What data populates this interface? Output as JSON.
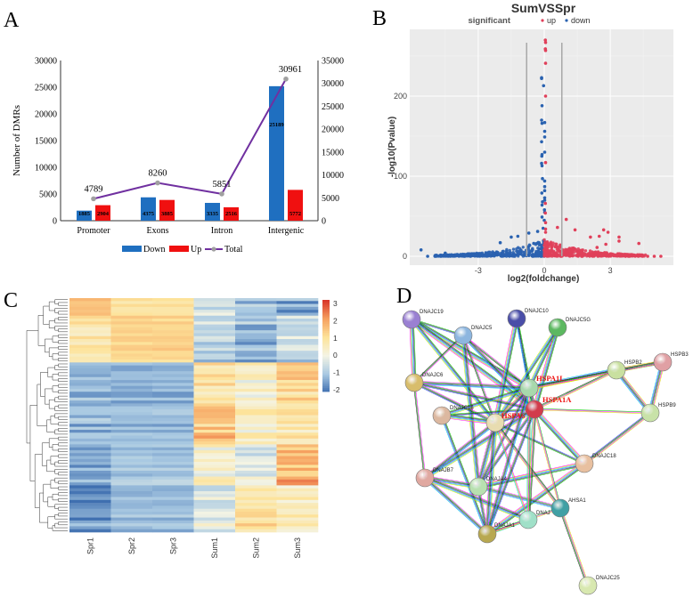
{
  "panels": {
    "a": "A",
    "b": "B",
    "c": "C",
    "d": "D"
  },
  "chart_data": [
    {
      "type": "bar",
      "panel": "A",
      "categories": [
        "Promoter",
        "Exons",
        "Intron",
        "Intergenic"
      ],
      "series": [
        {
          "name": "Down",
          "axis": "left",
          "color": "#1f6fc0",
          "values": [
            1885,
            4375,
            3335,
            25189
          ]
        },
        {
          "name": "Up",
          "axis": "left",
          "color": "#f01010",
          "values": [
            2904,
            3885,
            2516,
            5772
          ]
        },
        {
          "name": "Total",
          "type": "line",
          "axis": "right",
          "color": "#7030a0",
          "marker_color": "#a0a0a0",
          "values": [
            4789,
            8260,
            5851,
            30961
          ]
        }
      ],
      "ylabel": "Number of DMRs",
      "ylim": [
        0,
        30000
      ],
      "yticks": [
        "0",
        "5000",
        "10000",
        "15000",
        "20000",
        "25000",
        "30000"
      ],
      "y2lim": [
        0,
        35000
      ],
      "y2ticks": [
        "0",
        "5000",
        "10000",
        "15000",
        "20000",
        "25000",
        "30000",
        "35000"
      ],
      "legend": [
        "Down",
        "Up",
        "Total"
      ],
      "legend_position": "bottom"
    },
    {
      "type": "scatter",
      "panel": "B",
      "title": "SumVSSpr",
      "legend_title": "significant",
      "legend": [
        {
          "name": "up",
          "color": "#e0405a"
        },
        {
          "name": "down",
          "color": "#2a62b0"
        }
      ],
      "legend_position": "top",
      "xlabel": "log2(foldchange)",
      "ylabel": "-log10(Pvalue)",
      "xlim": [
        -6.1,
        5.9
      ],
      "ylim": [
        -4,
        283
      ],
      "xticks": [
        {
          "v": -3,
          "label": "-3"
        },
        {
          "v": 0,
          "label": "0"
        },
        {
          "v": 3,
          "label": "3"
        }
      ],
      "yticks": [
        {
          "v": 0,
          "label": "0"
        },
        {
          "v": 100,
          "label": "100"
        },
        {
          "v": 200,
          "label": "200"
        }
      ],
      "thresholds": [
        -0.8,
        0.8
      ],
      "highlight_points": [
        {
          "x": -0.12,
          "y": 222,
          "g": "down"
        },
        {
          "x": -0.12,
          "y": 223,
          "g": "down"
        },
        {
          "x": -0.03,
          "y": 213,
          "g": "down"
        },
        {
          "x": -0.1,
          "y": 188,
          "g": "down"
        },
        {
          "x": -0.12,
          "y": 170,
          "g": "down"
        },
        {
          "x": -0.1,
          "y": 166,
          "g": "down"
        },
        {
          "x": -0.12,
          "y": 143,
          "g": "down"
        },
        {
          "x": -0.1,
          "y": 127,
          "g": "down"
        },
        {
          "x": -0.11,
          "y": 125,
          "g": "down"
        },
        {
          "x": -0.12,
          "y": 116,
          "g": "down"
        },
        {
          "x": -0.1,
          "y": 113,
          "g": "down"
        },
        {
          "x": -0.08,
          "y": 97,
          "g": "down"
        },
        {
          "x": -0.11,
          "y": 79,
          "g": "down"
        },
        {
          "x": -0.08,
          "y": 68,
          "g": "down"
        },
        {
          "x": -0.1,
          "y": 64,
          "g": "down"
        },
        {
          "x": -0.1,
          "y": 49,
          "g": "down"
        },
        {
          "x": 0.02,
          "y": 167,
          "g": "down"
        },
        {
          "x": 0.02,
          "y": 156,
          "g": "down"
        },
        {
          "x": 0.02,
          "y": 149,
          "g": "down"
        },
        {
          "x": 0.02,
          "y": 130,
          "g": "down"
        },
        {
          "x": 0.02,
          "y": 94,
          "g": "down"
        },
        {
          "x": 0.02,
          "y": 87,
          "g": "down"
        },
        {
          "x": 0.02,
          "y": 82,
          "g": "down"
        },
        {
          "x": 0.02,
          "y": 73,
          "g": "down"
        },
        {
          "x": 0.02,
          "y": 70,
          "g": "down"
        },
        {
          "x": 0.01,
          "y": 58,
          "g": "down"
        },
        {
          "x": 0.02,
          "y": 55,
          "g": "down"
        },
        {
          "x": 0.0,
          "y": 45,
          "g": "down"
        },
        {
          "x": -0.05,
          "y": 35,
          "g": "down"
        },
        {
          "x": 0.05,
          "y": 270,
          "g": "up"
        },
        {
          "x": 0.06,
          "y": 267,
          "g": "up"
        },
        {
          "x": 0.05,
          "y": 259,
          "g": "up"
        },
        {
          "x": 0.06,
          "y": 257,
          "g": "up"
        },
        {
          "x": 0.06,
          "y": 241,
          "g": "up"
        },
        {
          "x": 0.06,
          "y": 200,
          "g": "up"
        },
        {
          "x": 0.06,
          "y": 117,
          "g": "up"
        },
        {
          "x": 0.05,
          "y": 66,
          "g": "up"
        },
        {
          "x": 0.05,
          "y": 54,
          "g": "up"
        },
        {
          "x": 0.06,
          "y": 42,
          "g": "up"
        },
        {
          "x": 0.06,
          "y": 34,
          "g": "up"
        },
        {
          "x": 0.06,
          "y": 30,
          "g": "up"
        },
        {
          "x": 1.0,
          "y": 46,
          "g": "up"
        },
        {
          "x": 0.6,
          "y": 36,
          "g": "up"
        },
        {
          "x": 1.4,
          "y": 33,
          "g": "up"
        },
        {
          "x": 2.7,
          "y": 33,
          "g": "up"
        },
        {
          "x": 2.9,
          "y": 30,
          "g": "up"
        },
        {
          "x": 2.5,
          "y": 25,
          "g": "up"
        },
        {
          "x": 3.4,
          "y": 24,
          "g": "up"
        },
        {
          "x": 2.1,
          "y": 24,
          "g": "up"
        },
        {
          "x": 3.4,
          "y": 19,
          "g": "up"
        },
        {
          "x": 2.8,
          "y": 15,
          "g": "up"
        },
        {
          "x": 4.3,
          "y": 16,
          "g": "up"
        },
        {
          "x": 2.4,
          "y": 11,
          "g": "up"
        },
        {
          "x": 5.0,
          "y": 0,
          "g": "up"
        },
        {
          "x": 5.3,
          "y": 0,
          "g": "up"
        },
        {
          "x": 4.7,
          "y": 0,
          "g": "up"
        },
        {
          "x": -5.6,
          "y": 8,
          "g": "down"
        },
        {
          "x": -5.3,
          "y": 0,
          "g": "down"
        },
        {
          "x": -4.9,
          "y": 0,
          "g": "down"
        },
        {
          "x": -4.5,
          "y": 4,
          "g": "down"
        },
        {
          "x": -1.5,
          "y": 24,
          "g": "down"
        },
        {
          "x": -1.2,
          "y": 25,
          "g": "down"
        },
        {
          "x": -0.7,
          "y": 29,
          "g": "down"
        },
        {
          "x": -0.3,
          "y": 31,
          "g": "down"
        },
        {
          "x": -2.0,
          "y": 17,
          "g": "down"
        }
      ],
      "bulk_points_per_side": 420
    },
    {
      "type": "heatmap",
      "panel": "C",
      "columns": [
        "Spr1",
        "Spr2",
        "Spr3",
        "Sum1",
        "Sum2",
        "Sum3"
      ],
      "colorbar": {
        "range": [
          -2,
          3
        ],
        "ticks": [
          "3",
          "2",
          "1",
          "0",
          "-1",
          "-2"
        ],
        "stops": [
          "#3f6fb0",
          "#a9c9e2",
          "#f4f4e4",
          "#fde39a",
          "#f6a160",
          "#d9382a"
        ]
      },
      "row_blocks": [
        {
          "rows": 6,
          "values": [
            1.6,
            0.9,
            0.9,
            -0.4,
            -1.0,
            -1.3
          ]
        },
        {
          "rows": 16,
          "values": [
            0.7,
            1.2,
            1.2,
            -0.8,
            -1.2,
            -0.6
          ]
        },
        {
          "rows": 14,
          "values": [
            -1.3,
            -1.3,
            -1.3,
            0.7,
            0.2,
            1.2
          ]
        },
        {
          "rows": 14,
          "values": [
            -1.1,
            -1.2,
            -1.2,
            1.4,
            0.3,
            0.6
          ]
        },
        {
          "rows": 14,
          "values": [
            -1.5,
            -1.0,
            -1.0,
            0.3,
            -0.2,
            1.7
          ]
        },
        {
          "rows": 16,
          "values": [
            -1.6,
            -1.1,
            -1.1,
            -0.3,
            1.0,
            0.6
          ]
        }
      ]
    }
  ],
  "network": {
    "panel": "D",
    "nodes": [
      {
        "id": "DNAJC19",
        "color": "#9a80d2",
        "hub": false
      },
      {
        "id": "DNAJC5",
        "color": "#8db6df",
        "hub": false
      },
      {
        "id": "DNAJC10",
        "color": "#4a4ea8",
        "hub": false
      },
      {
        "id": "DNAJC5G",
        "color": "#5cb860",
        "hub": false
      },
      {
        "id": "HSPB2",
        "color": "#c9e0a0",
        "hub": false
      },
      {
        "id": "HSPB3",
        "color": "#e0a0a4",
        "hub": false
      },
      {
        "id": "DNAJC6",
        "color": "#d8bd6c",
        "hub": false
      },
      {
        "id": "HSPA1L",
        "color": "#a8d8ac",
        "hub": true
      },
      {
        "id": "HSPA1A",
        "color": "#d23c4c",
        "hub": true
      },
      {
        "id": "HSPB9",
        "color": "#c8e2a8",
        "hub": false
      },
      {
        "id": "DNAJC16",
        "color": "#dcb8a0",
        "hub": false
      },
      {
        "id": "HSPA6",
        "color": "#e8dcb0",
        "hub": true
      },
      {
        "id": "DNAJC18",
        "color": "#e8c0a0",
        "hub": false
      },
      {
        "id": "DNAJB7",
        "color": "#e0a8a0",
        "hub": false
      },
      {
        "id": "DNAJA4",
        "color": "#b8e0b0",
        "hub": false
      },
      {
        "id": "AHSA1",
        "color": "#40a0a4",
        "hub": false
      },
      {
        "id": "DNAJ",
        "color": "#a0e0c8",
        "hub": false
      },
      {
        "id": "DNAJA1",
        "color": "#b8a850",
        "hub": false
      },
      {
        "id": "DNAJC25",
        "color": "#d8e8b0",
        "hub": false
      }
    ],
    "edges": [
      [
        "DNAJC19",
        "DNAJC5"
      ],
      [
        "DNAJC19",
        "DNAJC6"
      ],
      [
        "DNAJC19",
        "HSPA1L"
      ],
      [
        "DNAJC19",
        "HSPA1A"
      ],
      [
        "DNAJC19",
        "HSPA6"
      ],
      [
        "DNAJC5",
        "HSPA1L"
      ],
      [
        "DNAJC5",
        "HSPA1A"
      ],
      [
        "DNAJC5",
        "HSPA6"
      ],
      [
        "DNAJC5",
        "DNAJC6"
      ],
      [
        "DNAJC5",
        "DNAJA4"
      ],
      [
        "DNAJC10",
        "HSPA1L"
      ],
      [
        "DNAJC10",
        "HSPA1A"
      ],
      [
        "DNAJC10",
        "HSPA6"
      ],
      [
        "DNAJC5G",
        "HSPA1L"
      ],
      [
        "DNAJC5G",
        "HSPA1A"
      ],
      [
        "DNAJC5G",
        "HSPA6"
      ],
      [
        "HSPB2",
        "HSPB3"
      ],
      [
        "HSPB2",
        "HSPB9"
      ],
      [
        "HSPB3",
        "HSPB9"
      ],
      [
        "HSPB2",
        "HSPA1L"
      ],
      [
        "HSPB2",
        "HSPA1A"
      ],
      [
        "HSPB3",
        "HSPA1L"
      ],
      [
        "HSPB9",
        "HSPA1A"
      ],
      [
        "HSPB9",
        "DNAJC18"
      ],
      [
        "DNAJC6",
        "HSPA1L"
      ],
      [
        "DNAJC6",
        "HSPA1A"
      ],
      [
        "DNAJC6",
        "HSPA6"
      ],
      [
        "DNAJC6",
        "DNAJB7"
      ],
      [
        "DNAJC16",
        "HSPA1L"
      ],
      [
        "DNAJC16",
        "HSPA1A"
      ],
      [
        "DNAJC16",
        "HSPA6"
      ],
      [
        "DNAJC16",
        "DNAJA1"
      ],
      [
        "HSPA6",
        "HSPA1A"
      ],
      [
        "HSPA6",
        "HSPA1L"
      ],
      [
        "HSPA1L",
        "HSPA1A"
      ],
      [
        "DNAJC18",
        "HSPA1A"
      ],
      [
        "DNAJC18",
        "HSPA6"
      ],
      [
        "DNAJC18",
        "DNAJA4"
      ],
      [
        "DNAJC18",
        "DNAJA1"
      ],
      [
        "DNAJB7",
        "HSPA1A"
      ],
      [
        "DNAJB7",
        "HSPA6"
      ],
      [
        "DNAJB7",
        "DNAJA4"
      ],
      [
        "DNAJB7",
        "DNAJA1"
      ],
      [
        "DNAJB7",
        "DNAJ"
      ],
      [
        "DNAJA4",
        "HSPA1A"
      ],
      [
        "DNAJA4",
        "HSPA6"
      ],
      [
        "DNAJA4",
        "HSPA1L"
      ],
      [
        "DNAJA4",
        "DNAJA1"
      ],
      [
        "DNAJA4",
        "AHSA1"
      ],
      [
        "AHSA1",
        "HSPA1A"
      ],
      [
        "AHSA1",
        "HSPA6"
      ],
      [
        "AHSA1",
        "DNAJA1"
      ],
      [
        "AHSA1",
        "DNAJC25"
      ],
      [
        "DNAJ",
        "HSPA1A"
      ],
      [
        "DNAJ",
        "HSPA6"
      ],
      [
        "DNAJ",
        "HSPA1L"
      ],
      [
        "DNAJ",
        "DNAJA1"
      ],
      [
        "DNAJA1",
        "HSPA1A"
      ],
      [
        "DNAJA1",
        "HSPA6"
      ],
      [
        "DNAJA1",
        "HSPA1L"
      ]
    ],
    "edge_colors": [
      "#ff00ff",
      "#00c000",
      "#202020",
      "#3050ff",
      "#00c8e0",
      "#d8e000"
    ]
  }
}
